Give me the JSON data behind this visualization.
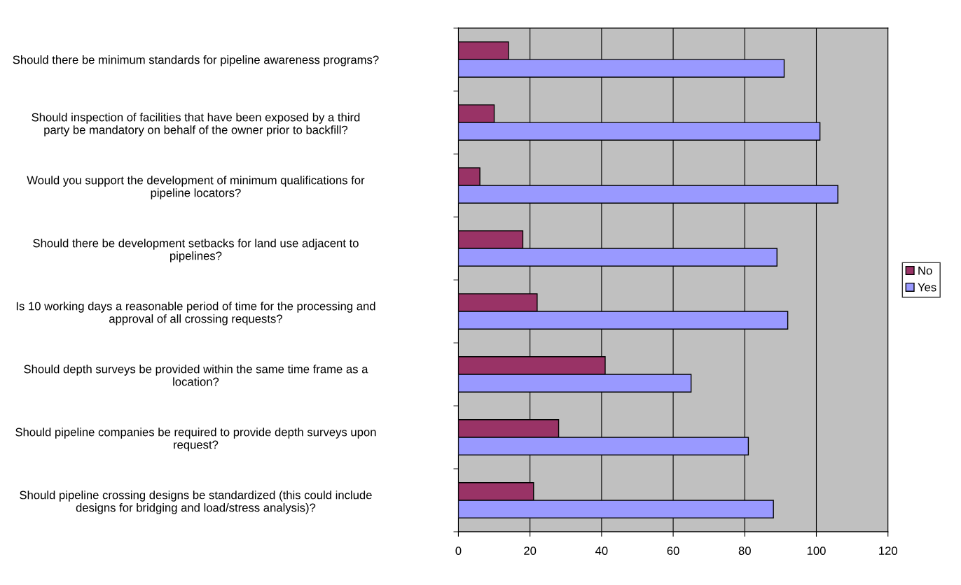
{
  "chart_data": {
    "type": "bar",
    "orientation": "horizontal",
    "categories": [
      "Should there be minimum standards for pipeline awareness programs?",
      "Should inspection of facilities that have been exposed by a third party be mandatory on behalf of the owner prior to backfill?",
      "Would you support the development of minimum qualifications for pipeline locators?",
      "Should there be development setbacks for land use adjacent to pipelines?",
      "Is 10 working days a reasonable period of time for the processing and approval of all crossing requests?",
      "Should depth surveys be provided within the same time frame as a location?",
      "Should pipeline companies be required to provide depth surveys upon request?",
      "Should pipeline crossing designs be standardized (this could include designs for bridging and load/stress analysis)?"
    ],
    "series": [
      {
        "name": "No",
        "color": "#993366",
        "values": [
          14,
          10,
          6,
          18,
          22,
          41,
          28,
          21
        ]
      },
      {
        "name": "Yes",
        "color": "#9999ff",
        "values": [
          91,
          101,
          106,
          89,
          92,
          65,
          81,
          88
        ]
      }
    ],
    "xlim": [
      0,
      120
    ],
    "xticks": [
      0,
      20,
      40,
      60,
      80,
      100,
      120
    ],
    "grid": "x",
    "legend": "right"
  }
}
